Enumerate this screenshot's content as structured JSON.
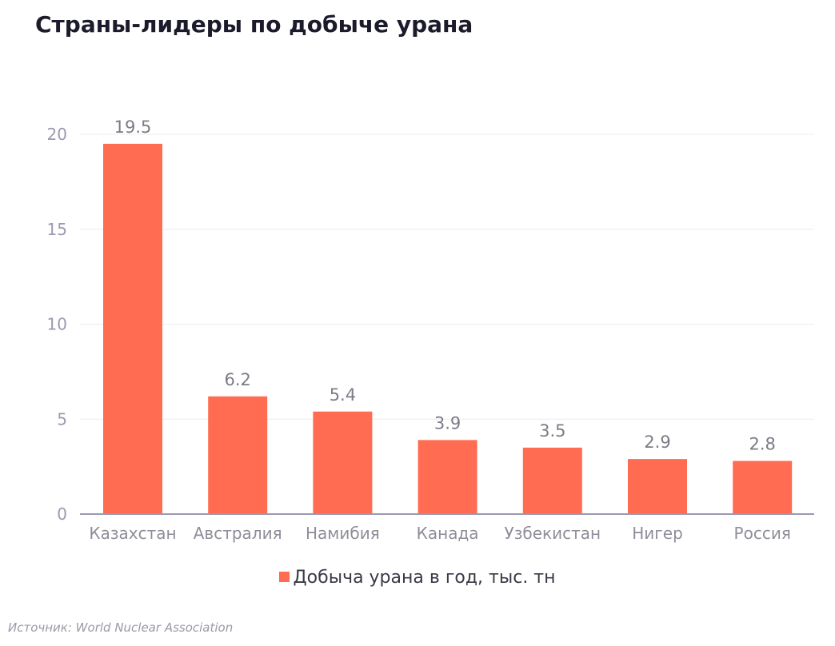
{
  "chart_data": {
    "type": "bar",
    "title": "Страны-лидеры по добыче урана",
    "categories": [
      "Казахстан",
      "Австралия",
      "Намибия",
      "Канада",
      "Узбекистан",
      "Нигер",
      "Россия"
    ],
    "series": [
      {
        "name": "Добыча урана в год, тыс. тн",
        "values": [
          19.5,
          6.2,
          5.4,
          3.9,
          3.5,
          2.9,
          2.8
        ],
        "color": "#ff6c52"
      }
    ],
    "ylim": [
      0,
      20
    ],
    "yticks": [
      0,
      5,
      10,
      15,
      20
    ],
    "grid": true,
    "legend": "bottom-center",
    "xlabel": "",
    "ylabel": ""
  },
  "source": "Источник: World Nuclear Association",
  "colors": {
    "bar": "#ff6c52",
    "axis": "#9b9ab0",
    "grid": "#ececf0",
    "tick_label": "#9b9ab0",
    "category_label": "#8e8e9a",
    "data_label": "#7c7c86"
  }
}
